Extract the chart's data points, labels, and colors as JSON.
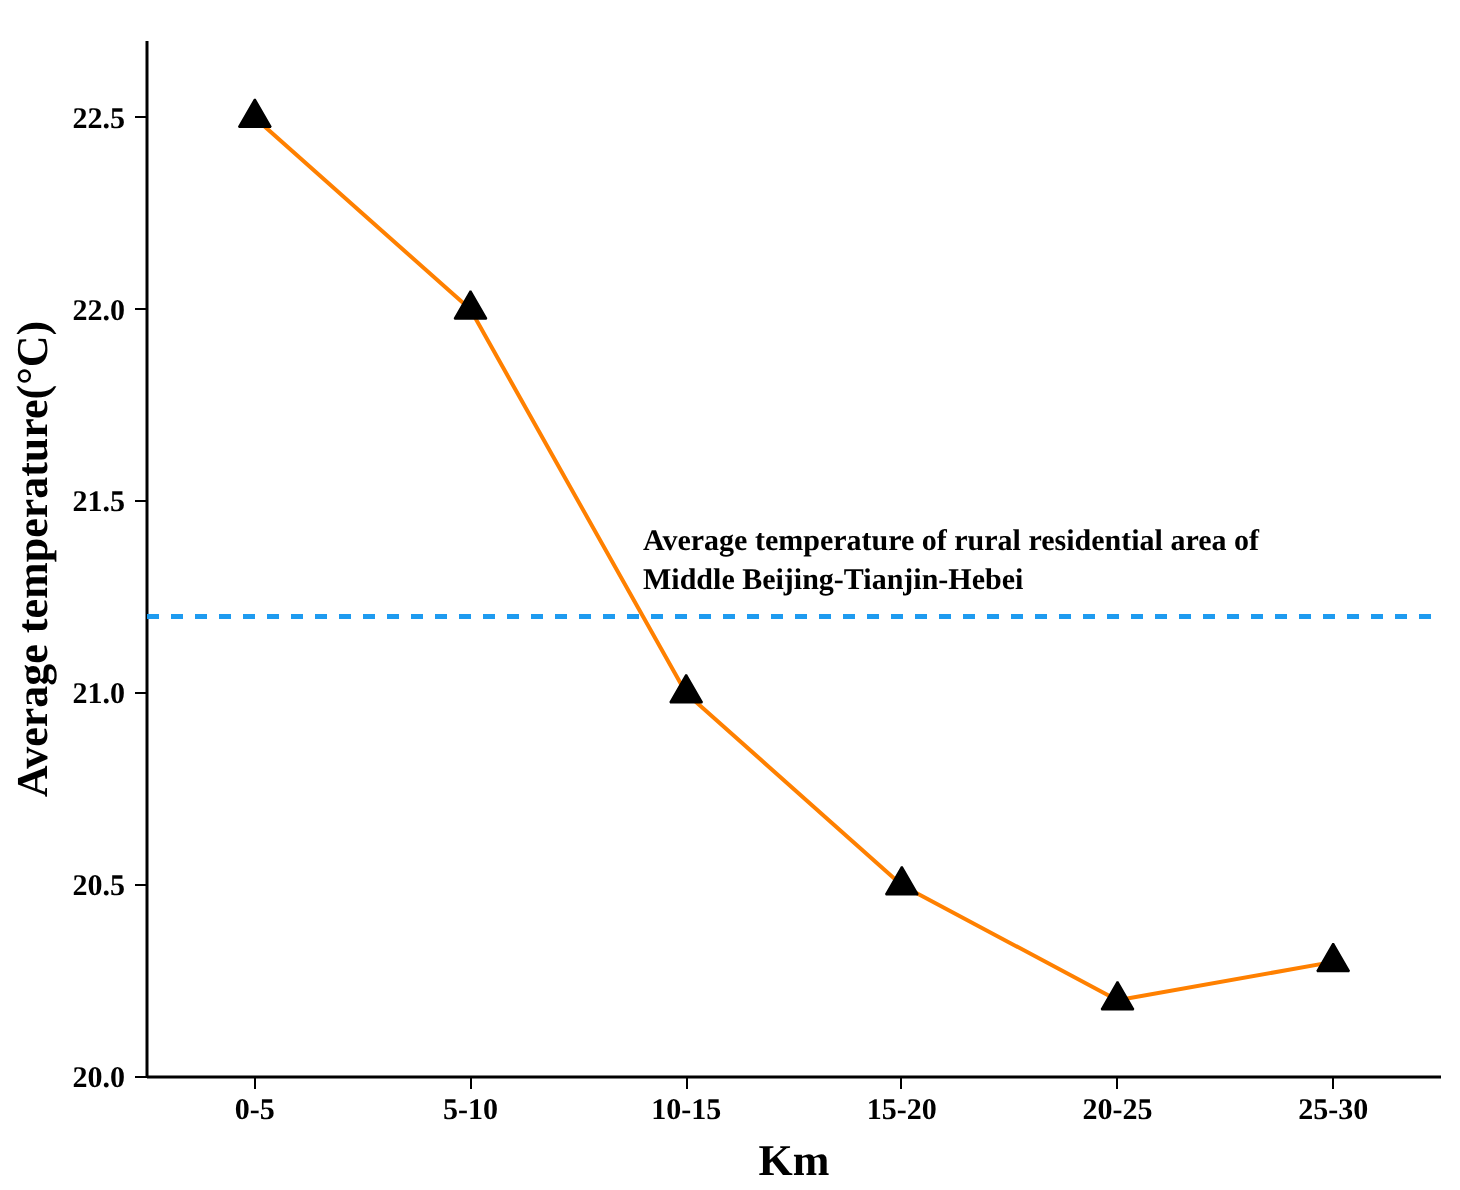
{
  "chart_data": {
    "type": "line",
    "xlabel": "Km",
    "ylabel": "Average temperature(°C)",
    "categories": [
      "0-5",
      "5-10",
      "10-15",
      "15-20",
      "20-25",
      "25-30"
    ],
    "series": [
      {
        "color": "#ff8000",
        "values": [
          22.5,
          22.0,
          21.0,
          20.5,
          20.2,
          20.3
        ]
      }
    ],
    "ylim": [
      20.0,
      22.7
    ],
    "yticks": [
      {
        "value": 20,
        "label": "20.0"
      },
      20.5,
      {
        "value": 21,
        "label": "21.0"
      },
      21.5,
      {
        "value": 22,
        "label": "22.0"
      },
      22.5
    ],
    "marker": "triangle",
    "line_style": "solid",
    "ref_lines": [
      {
        "axis": "y",
        "value": 21.2,
        "label": "Average temperature of rural residential area of\nMiddle Beijing-Tianjin-Hebei",
        "color": "#1e9bf0",
        "line_style": "dashed"
      }
    ]
  }
}
